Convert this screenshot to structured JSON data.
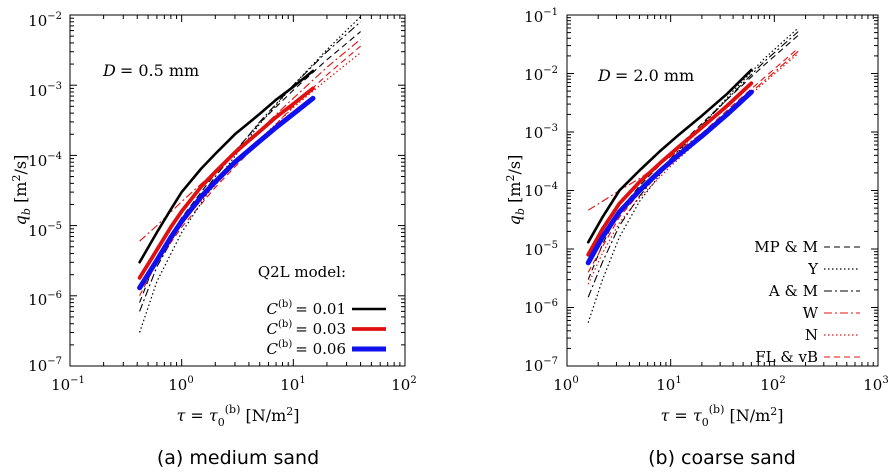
{
  "chart_data": [
    {
      "type": "line",
      "log_x": true,
      "log_y": true,
      "xlim": [
        0.1,
        100
      ],
      "ylim": [
        1e-07,
        0.01
      ],
      "xticks": [
        {
          "value": 0.1,
          "base": "10",
          "exp": "−1"
        },
        {
          "value": 1,
          "base": "10",
          "exp": "0"
        },
        {
          "value": 10,
          "base": "10",
          "exp": "1"
        },
        {
          "value": 100,
          "base": "10",
          "exp": "2"
        }
      ],
      "yticks": [
        {
          "value": 1e-07,
          "base": "10",
          "exp": "−7"
        },
        {
          "value": 1e-06,
          "base": "10",
          "exp": "−6"
        },
        {
          "value": 1e-05,
          "base": "10",
          "exp": "−5"
        },
        {
          "value": 0.0001,
          "base": "10",
          "exp": "−4"
        },
        {
          "value": 0.001,
          "base": "10",
          "exp": "−3"
        },
        {
          "value": 0.01,
          "base": "10",
          "exp": "−2"
        }
      ],
      "annotation": {
        "lhs": "D",
        "rhs": "= 0.5 mm"
      },
      "legend_title": "Q2L model:",
      "caption": "(a) medium sand",
      "series": [
        {
          "name": "C(b) = 0.01",
          "label_rhs": "= 0.01",
          "color": "#000000",
          "style": "solid",
          "width": 2.6,
          "in_legend": true,
          "x": [
            0.42,
            0.6,
            0.8,
            1.0,
            1.5,
            2,
            3,
            5,
            7,
            10,
            15
          ],
          "y": [
            3e-06,
            8e-06,
            1.7e-05,
            3e-05,
            6.5e-05,
            0.000105,
            0.0002,
            0.00039,
            0.00062,
            0.00095,
            0.0016
          ]
        },
        {
          "name": "C(b) = 0.03",
          "label_rhs": "= 0.03",
          "color": "#e01010",
          "style": "solid",
          "width": 3.8,
          "in_legend": true,
          "x": [
            0.42,
            0.6,
            0.8,
            1.0,
            1.5,
            2,
            3,
            5,
            7,
            10,
            15
          ],
          "y": [
            1.8e-06,
            4.5e-06,
            9.5e-06,
            1.6e-05,
            3.6e-05,
            5.8e-05,
            0.00011,
            0.00022,
            0.00035,
            0.00054,
            0.0009
          ]
        },
        {
          "name": "C(b) = 0.06",
          "label_rhs": "= 0.06",
          "color": "#1010ee",
          "style": "solid",
          "width": 5.0,
          "in_legend": true,
          "x": [
            0.42,
            0.6,
            0.8,
            1.0,
            1.5,
            2,
            3,
            5,
            7,
            10,
            15
          ],
          "y": [
            1.3e-06,
            3.2e-06,
            6.8e-06,
            1.15e-05,
            2.6e-05,
            4.2e-05,
            8e-05,
            0.00016,
            0.00025,
            0.00039,
            0.00065
          ]
        },
        {
          "name": "MP & M",
          "color": "#000000",
          "style": "dashed",
          "width": 1.1,
          "in_legend": false,
          "x": [
            0.42,
            0.6,
            1,
            2,
            5,
            10,
            20,
            40
          ],
          "y": [
            8e-07,
            3.5e-06,
            1.3e-05,
            5.5e-05,
            0.00029,
            0.00085,
            0.0023,
            0.0058
          ]
        },
        {
          "name": "Y",
          "color": "#000000",
          "style": "dotted",
          "width": 1.2,
          "in_legend": false,
          "x": [
            0.42,
            0.6,
            1,
            2,
            5,
            10,
            20,
            40
          ],
          "y": [
            3e-07,
            1.6e-06,
            8e-06,
            4.2e-05,
            0.00028,
            0.001,
            0.0032,
            0.0095
          ]
        },
        {
          "name": "A & M",
          "color": "#000000",
          "style": "dashdot",
          "width": 1.1,
          "in_legend": false,
          "x": [
            0.42,
            0.6,
            1,
            2,
            5,
            10,
            20,
            40
          ],
          "y": [
            6e-07,
            2.6e-06,
            1.1e-05,
            5e-05,
            0.0003,
            0.001,
            0.003,
            0.008
          ]
        },
        {
          "name": "W",
          "color": "#e01010",
          "style": "dashdot",
          "width": 1.1,
          "in_legend": false,
          "x": [
            0.42,
            0.6,
            1,
            2,
            5,
            10,
            20,
            40
          ],
          "y": [
            6e-06,
            1e-05,
            2.2e-05,
            6e-05,
            0.00023,
            0.00065,
            0.0018,
            0.0045
          ]
        },
        {
          "name": "N",
          "color": "#e01010",
          "style": "dotted",
          "width": 1.2,
          "in_legend": false,
          "x": [
            0.42,
            0.6,
            1,
            2,
            5,
            10,
            20,
            40
          ],
          "y": [
            1.4e-06,
            3.6e-06,
            1.1e-05,
            3.8e-05,
            0.00017,
            0.00048,
            0.0012,
            0.0029
          ]
        },
        {
          "name": "FL & vB",
          "color": "#e01010",
          "style": "dashed",
          "width": 1.1,
          "in_legend": false,
          "x": [
            0.42,
            0.6,
            1,
            2,
            5,
            10,
            20,
            40
          ],
          "y": [
            1e-06,
            3e-06,
            9.5e-06,
            3.5e-05,
            0.00016,
            0.0005,
            0.0014,
            0.0036
          ]
        }
      ]
    },
    {
      "type": "line",
      "log_x": true,
      "log_y": true,
      "xlim": [
        1,
        1000
      ],
      "ylim": [
        1e-07,
        0.1
      ],
      "xticks": [
        {
          "value": 1,
          "base": "10",
          "exp": "0"
        },
        {
          "value": 10,
          "base": "10",
          "exp": "1"
        },
        {
          "value": 100,
          "base": "10",
          "exp": "2"
        },
        {
          "value": 1000,
          "base": "10",
          "exp": "3"
        }
      ],
      "yticks": [
        {
          "value": 1e-07,
          "base": "10",
          "exp": "−7"
        },
        {
          "value": 1e-06,
          "base": "10",
          "exp": "−6"
        },
        {
          "value": 1e-05,
          "base": "10",
          "exp": "−5"
        },
        {
          "value": 0.0001,
          "base": "10",
          "exp": "−4"
        },
        {
          "value": 0.001,
          "base": "10",
          "exp": "−3"
        },
        {
          "value": 0.01,
          "base": "10",
          "exp": "−2"
        },
        {
          "value": 0.1,
          "base": "10",
          "exp": "−1"
        }
      ],
      "annotation": {
        "lhs": "D",
        "rhs": "= 2.0 mm"
      },
      "caption": "(b) coarse sand",
      "series": [
        {
          "name": "C(b) = 0.01",
          "color": "#000000",
          "style": "solid",
          "width": 2.6,
          "in_legend": false,
          "x": [
            1.6,
            2.2,
            3.2,
            5,
            8,
            12,
            20,
            35,
            60
          ],
          "y": [
            1.3e-05,
            3.5e-05,
            0.0001,
            0.00022,
            0.00048,
            0.0009,
            0.0019,
            0.0045,
            0.0115
          ]
        },
        {
          "name": "C(b) = 0.03",
          "color": "#e01010",
          "style": "solid",
          "width": 3.8,
          "in_legend": false,
          "x": [
            1.6,
            2.2,
            3.2,
            5,
            8,
            12,
            20,
            35,
            60
          ],
          "y": [
            8e-06,
            2.2e-05,
            6e-05,
            0.00014,
            0.0003,
            0.00056,
            0.0012,
            0.0028,
            0.0068
          ]
        },
        {
          "name": "C(b) = 0.06",
          "color": "#1010ee",
          "style": "solid",
          "width": 5.0,
          "in_legend": false,
          "x": [
            1.6,
            2.2,
            3.2,
            5,
            8,
            12,
            20,
            35,
            60
          ],
          "y": [
            5.8e-06,
            1.6e-05,
            4.3e-05,
            0.0001,
            0.00022,
            0.00041,
            0.00085,
            0.002,
            0.0048
          ]
        },
        {
          "name": "MP & M",
          "color": "#000000",
          "style": "dashed",
          "width": 1.1,
          "in_legend": true,
          "x": [
            1.6,
            2.2,
            3.2,
            5,
            10,
            20,
            40,
            80,
            170
          ],
          "y": [
            3e-06,
            1.2e-05,
            4.5e-05,
            0.00012,
            0.00042,
            0.0014,
            0.0045,
            0.014,
            0.045
          ]
        },
        {
          "name": "Y",
          "color": "#000000",
          "style": "dotted",
          "width": 1.2,
          "in_legend": true,
          "x": [
            1.6,
            2.2,
            3.2,
            5,
            10,
            20,
            40,
            80,
            170
          ],
          "y": [
            5.5e-07,
            3e-06,
            1.6e-05,
            6.5e-05,
            0.00032,
            0.0013,
            0.005,
            0.018,
            0.06
          ]
        },
        {
          "name": "A & M",
          "color": "#000000",
          "style": "dashdot",
          "width": 1.1,
          "in_legend": true,
          "x": [
            1.6,
            2.2,
            3.2,
            5,
            10,
            20,
            40,
            80,
            170
          ],
          "y": [
            1.5e-06,
            6e-06,
            2.5e-05,
            8e-05,
            0.00035,
            0.0013,
            0.0046,
            0.016,
            0.052
          ]
        },
        {
          "name": "W",
          "color": "#e01010",
          "style": "dashdot",
          "width": 1.1,
          "in_legend": true,
          "x": [
            1.6,
            2.2,
            3.2,
            5,
            10,
            20,
            40,
            80,
            170
          ],
          "y": [
            4.6e-05,
            6.5e-05,
            0.0001,
            0.00016,
            0.00038,
            0.00095,
            0.0026,
            0.0075,
            0.024
          ]
        },
        {
          "name": "N",
          "color": "#e01010",
          "style": "dotted",
          "width": 1.2,
          "in_legend": true,
          "x": [
            1.6,
            2.2,
            3.2,
            5,
            10,
            20,
            40,
            80,
            170
          ],
          "y": [
            2.5e-06,
            8.5e-06,
            2.8e-05,
            7.5e-05,
            0.00026,
            0.0008,
            0.0024,
            0.007,
            0.022
          ]
        },
        {
          "name": "FL & vB",
          "color": "#e01010",
          "style": "dashed",
          "width": 1.1,
          "in_legend": true,
          "x": [
            1.6,
            2.2,
            3.2,
            5,
            10,
            20,
            40,
            80,
            170
          ],
          "y": [
            4e-06,
            1.1e-05,
            3.5e-05,
            9e-05,
            0.0003,
            0.00095,
            0.0029,
            0.0085,
            0.027
          ]
        }
      ]
    }
  ]
}
